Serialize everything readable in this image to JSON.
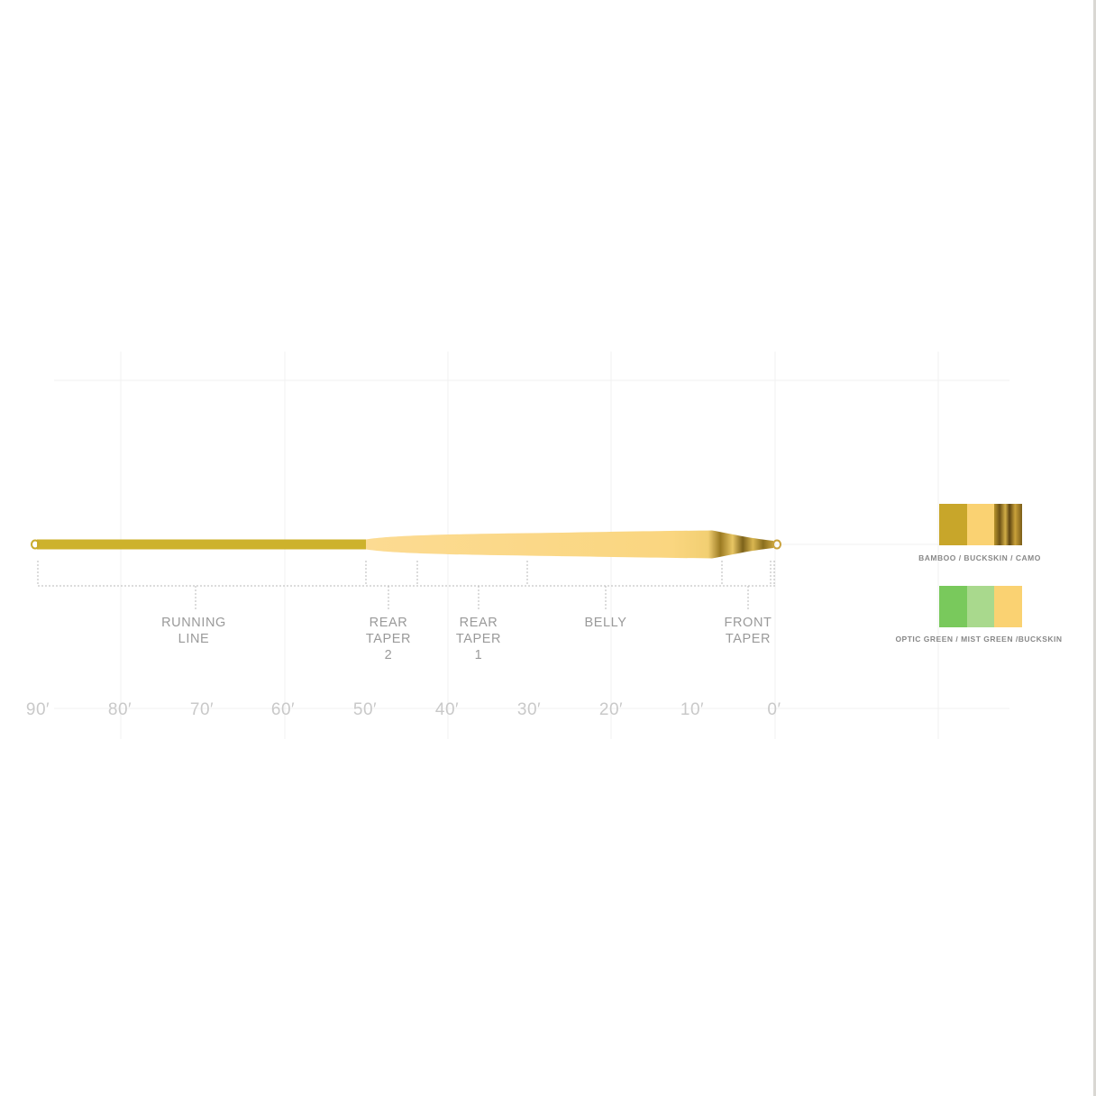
{
  "segments": [
    {
      "label": "RUNNING\nLINE"
    },
    {
      "label": "REAR\nTAPER\n2"
    },
    {
      "label": "REAR\nTAPER\n1"
    },
    {
      "label": "BELLY"
    },
    {
      "label": "FRONT\nTAPER"
    }
  ],
  "scale": {
    "unit": "feet",
    "ticks": [
      "90′",
      "80′",
      "70′",
      "60′",
      "50′",
      "40′",
      "30′",
      "20′",
      "10′",
      "0′"
    ],
    "boundaries_ft": [
      90,
      49.9,
      43.6,
      30.2,
      6.2,
      0.4,
      0
    ]
  },
  "colorways": [
    {
      "caption": "BAMBOO / BUCKSKIN / CAMO",
      "colors": [
        "#c8a62a",
        "#fad272",
        "#8f6a1f"
      ]
    },
    {
      "caption": "OPTIC GREEN / MIST GREEN /BUCKSKIN",
      "colors": [
        "#79c95c",
        "#a9d98d",
        "#fad272"
      ]
    }
  ],
  "line_colors": {
    "running_line": "#cdb22c",
    "head": "#fbd988",
    "tip_dark": "#8a6e1e"
  }
}
